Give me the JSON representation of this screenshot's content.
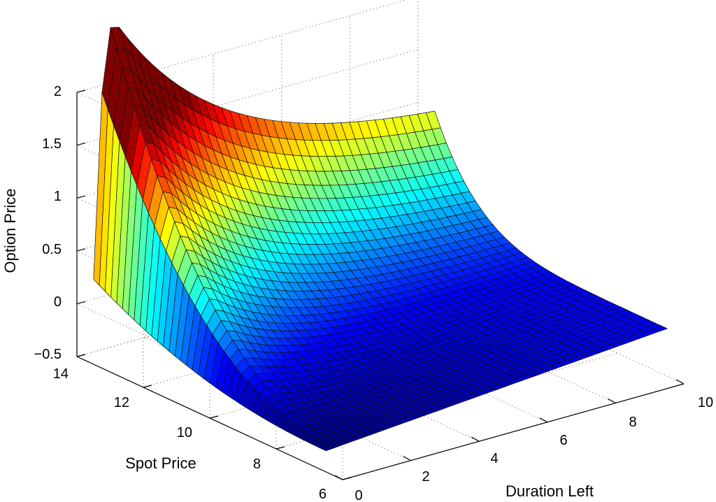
{
  "chart_data": {
    "type": "surface",
    "title": "",
    "xlabel": "Duration Left",
    "ylabel": "Spot Price",
    "zlabel": "Option Price",
    "x_ticks": [
      "0",
      "2",
      "4",
      "6",
      "8",
      "10"
    ],
    "y_ticks": [
      "6",
      "8",
      "10",
      "12",
      "14"
    ],
    "z_ticks": [
      "−0.5",
      "0",
      "0.5",
      "1",
      "1.5",
      "2"
    ],
    "xlim": [
      0,
      10
    ],
    "ylim": [
      6,
      14
    ],
    "zlim": [
      -0.5,
      2
    ],
    "grid": true,
    "colormap": "jet",
    "x_range": [
      0,
      10
    ],
    "y_range": [
      6.5,
      13.5
    ],
    "z_surface_samples": [
      {
        "x": 0,
        "y": 6.5,
        "z": -0.3
      },
      {
        "x": 0,
        "y": 13.5,
        "z": -0.3
      },
      {
        "x": 0.5,
        "y": 13.5,
        "z": 1.75
      },
      {
        "x": 5,
        "y": 13.5,
        "z": 0.97
      },
      {
        "x": 10,
        "y": 13.5,
        "z": 0.9
      },
      {
        "x": 10,
        "y": 6.5,
        "z": -0.05
      },
      {
        "x": 5,
        "y": 6.5,
        "z": -0.3
      }
    ]
  }
}
